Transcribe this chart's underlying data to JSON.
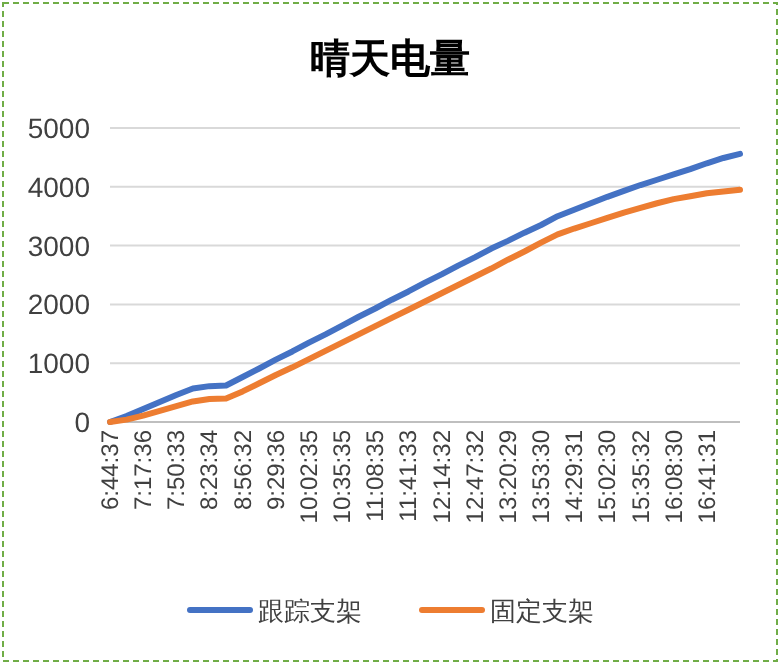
{
  "chart_data": {
    "type": "line",
    "title": "晴天电量",
    "categories": [
      "6:44:37",
      null,
      "7:17:36",
      null,
      "7:50:33",
      null,
      "8:23:34",
      null,
      "8:56:32",
      null,
      "9:29:36",
      null,
      "10:02:35",
      null,
      "10:35:35",
      null,
      "11:08:35",
      null,
      "11:41:33",
      null,
      "12:14:32",
      null,
      "12:47:32",
      null,
      "13:20:29",
      null,
      "13:53:30",
      null,
      "14:29:31",
      null,
      "15:02:30",
      null,
      "15:35:32",
      null,
      "16:08:30",
      null,
      "16:41:31",
      null,
      null
    ],
    "series": [
      {
        "name": "跟踪支架",
        "color": "#4472c4",
        "values": [
          0,
          100,
          220,
          340,
          460,
          570,
          610,
          620,
          765,
          910,
          1060,
          1200,
          1350,
          1490,
          1640,
          1790,
          1930,
          2080,
          2220,
          2370,
          2510,
          2660,
          2800,
          2950,
          3080,
          3220,
          3350,
          3500,
          3610,
          3720,
          3830,
          3930,
          4030,
          4120,
          4210,
          4300,
          4400,
          4490,
          4560
        ]
      },
      {
        "name": "固定支架",
        "color": "#ed7d31",
        "values": [
          0,
          40,
          110,
          190,
          270,
          350,
          390,
          400,
          520,
          660,
          800,
          930,
          1070,
          1210,
          1350,
          1490,
          1630,
          1770,
          1910,
          2050,
          2190,
          2330,
          2470,
          2610,
          2760,
          2900,
          3050,
          3190,
          3290,
          3380,
          3470,
          3560,
          3640,
          3720,
          3790,
          3840,
          3890,
          3920,
          3950
        ]
      }
    ],
    "ylim": [
      0,
      5000
    ],
    "yticks": [
      0,
      1000,
      2000,
      3000,
      4000,
      5000
    ],
    "grid": "y",
    "legend": "bottom"
  }
}
